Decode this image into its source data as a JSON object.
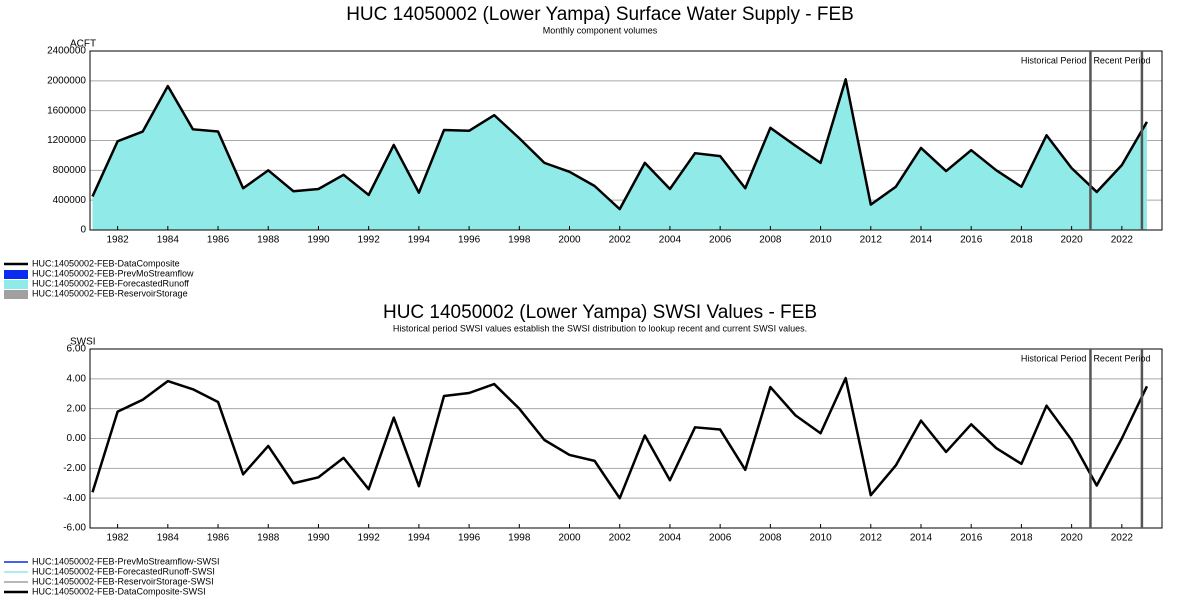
{
  "chart_data": [
    {
      "type": "area",
      "title": "HUC 14050002 (Lower Yampa) Surface Water Supply - FEB",
      "subtitle": "Monthly component volumes",
      "y_label": "ACFT",
      "x": [
        1981,
        1982,
        1983,
        1984,
        1985,
        1986,
        1987,
        1988,
        1989,
        1990,
        1991,
        1992,
        1993,
        1994,
        1995,
        1996,
        1997,
        1998,
        1999,
        2000,
        2001,
        2002,
        2003,
        2004,
        2005,
        2006,
        2007,
        2008,
        2009,
        2010,
        2011,
        2012,
        2013,
        2014,
        2015,
        2016,
        2017,
        2018,
        2019,
        2020,
        2021,
        2022,
        2023
      ],
      "series": [
        {
          "name": "HUC:14050002-FEB-DataComposite",
          "color": "#000000",
          "style": "line",
          "values": [
            450000,
            1190000,
            1320000,
            1930000,
            1350000,
            1320000,
            560000,
            800000,
            520000,
            550000,
            740000,
            470000,
            1140000,
            500000,
            1340000,
            1330000,
            1540000,
            1230000,
            900000,
            780000,
            590000,
            280000,
            900000,
            550000,
            1030000,
            990000,
            560000,
            1370000,
            1130000,
            900000,
            2020000,
            340000,
            580000,
            1100000,
            790000,
            1070000,
            800000,
            580000,
            1270000,
            830000,
            510000,
            870000,
            1450000
          ]
        },
        {
          "name": "HUC:14050002-FEB-PrevMoStreamflow",
          "color": "#0a2bf0",
          "style": "area"
        },
        {
          "name": "HUC:14050002-FEB-ForecastedRunoff",
          "color": "#90ebe8",
          "style": "area",
          "values": [
            450000,
            1190000,
            1320000,
            1930000,
            1350000,
            1320000,
            560000,
            800000,
            520000,
            550000,
            740000,
            470000,
            1140000,
            500000,
            1340000,
            1330000,
            1540000,
            1230000,
            900000,
            780000,
            590000,
            280000,
            900000,
            550000,
            1030000,
            990000,
            560000,
            1370000,
            1130000,
            900000,
            2020000,
            340000,
            580000,
            1100000,
            790000,
            1070000,
            800000,
            580000,
            1270000,
            830000,
            510000,
            870000,
            1450000
          ]
        },
        {
          "name": "HUC:14050002-FEB-ReservoirStorage",
          "color": "#a0a0a0",
          "style": "area"
        }
      ],
      "xlim": [
        1980.9,
        2023.6
      ],
      "xticks": [
        1982,
        1984,
        1986,
        1988,
        1990,
        1992,
        1994,
        1996,
        1998,
        2000,
        2002,
        2004,
        2006,
        2008,
        2010,
        2012,
        2014,
        2016,
        2018,
        2020,
        2022
      ],
      "ylim": [
        0,
        2400000
      ],
      "yticks": [
        0,
        400000,
        800000,
        1200000,
        1600000,
        2000000,
        2400000
      ],
      "grid": true,
      "period_boundaries": [
        2020.75,
        2022.8
      ],
      "annotations": [
        "Historical Period",
        "Recent Period"
      ]
    },
    {
      "type": "line",
      "title": "HUC 14050002 (Lower Yampa) SWSI Values - FEB",
      "subtitle": "Historical period SWSI values establish the SWSI distribution to lookup recent and current SWSI values.",
      "y_label": "SWSI",
      "x": [
        1981,
        1982,
        1983,
        1984,
        1985,
        1986,
        1987,
        1988,
        1989,
        1990,
        1991,
        1992,
        1993,
        1994,
        1995,
        1996,
        1997,
        1998,
        1999,
        2000,
        2001,
        2002,
        2003,
        2004,
        2005,
        2006,
        2007,
        2008,
        2009,
        2010,
        2011,
        2012,
        2013,
        2014,
        2015,
        2016,
        2017,
        2018,
        2019,
        2020,
        2021,
        2022,
        2023
      ],
      "series": [
        {
          "name": "HUC:14050002-FEB-PrevMoStreamflow-SWSI",
          "color": "#0a2bf0",
          "style": "line"
        },
        {
          "name": "HUC:14050002-FEB-ForecastedRunoff-SWSI",
          "color": "#90ebe8",
          "style": "line"
        },
        {
          "name": "HUC:14050002-FEB-ReservoirStorage-SWSI",
          "color": "#a0a0a0",
          "style": "line"
        },
        {
          "name": "HUC:14050002-FEB-DataComposite-SWSI",
          "color": "#000000",
          "style": "line",
          "values": [
            -3.6,
            1.8,
            2.6,
            3.85,
            3.3,
            2.45,
            -2.4,
            -0.5,
            -3.0,
            -2.6,
            -1.3,
            -3.4,
            1.4,
            -3.2,
            2.85,
            3.05,
            3.65,
            2.0,
            -0.1,
            -1.1,
            -1.5,
            -4.0,
            0.2,
            -2.8,
            0.75,
            0.6,
            -2.1,
            3.45,
            1.55,
            0.35,
            4.05,
            -3.8,
            -1.8,
            1.2,
            -0.9,
            0.95,
            -0.65,
            -1.7,
            2.2,
            -0.1,
            -3.15,
            0,
            3.5
          ]
        }
      ],
      "xlim": [
        1980.9,
        2023.6
      ],
      "xticks": [
        1982,
        1984,
        1986,
        1988,
        1990,
        1992,
        1994,
        1996,
        1998,
        2000,
        2002,
        2004,
        2006,
        2008,
        2010,
        2012,
        2014,
        2016,
        2018,
        2020,
        2022
      ],
      "ylim": [
        -6,
        6
      ],
      "yticks": [
        {
          "value": -6,
          "label": "-6.00"
        },
        {
          "value": -4,
          "label": "-4.00"
        },
        {
          "value": -2,
          "label": "-2.00"
        },
        {
          "value": 0,
          "label": "0.00"
        },
        {
          "value": 2,
          "label": "2.00"
        },
        {
          "value": 4,
          "label": "4.00"
        },
        {
          "value": 6,
          "label": "6.00"
        }
      ],
      "grid": true,
      "period_boundaries": [
        2020.75,
        2022.8
      ],
      "annotations": [
        "Historical Period",
        "Recent Period"
      ]
    }
  ]
}
